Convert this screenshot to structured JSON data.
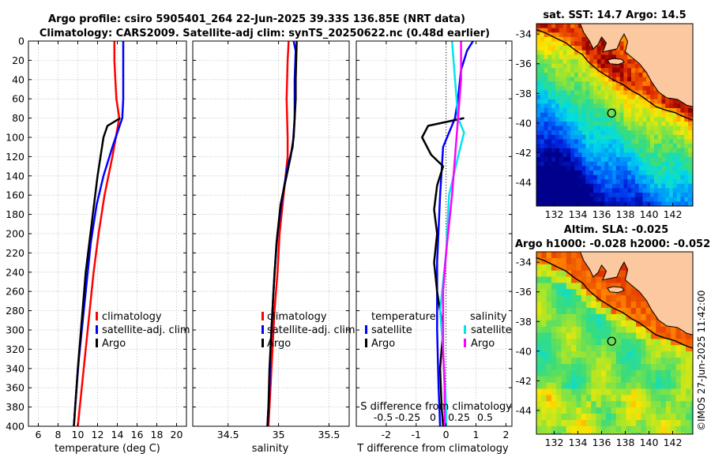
{
  "header": {
    "line1": "Argo profile: csiro 5905401_264 22-Jun-2025 39.33S 136.85E (NRT data)",
    "line2": "Climatology: CARS2009. Satellite-adj clim: synTS_20250622.nc (0.48d earlier)"
  },
  "colors": {
    "climatology": "#ff0000",
    "satellite": "#0000ff",
    "argo": "#000000",
    "sat_salinity": "#00e5ee",
    "argo_salinity": "#ff00ff",
    "land": "#fbc8a0"
  },
  "chart_data": [
    {
      "type": "line",
      "name": "temperature",
      "xlabel": "temperature (deg C)",
      "xlim": [
        5,
        21
      ],
      "ylim": [
        0,
        400
      ],
      "xticks": [
        6,
        8,
        10,
        12,
        14,
        16,
        18,
        20
      ],
      "yticks": [
        0,
        20,
        40,
        60,
        80,
        100,
        120,
        140,
        160,
        180,
        200,
        220,
        240,
        260,
        280,
        300,
        320,
        340,
        360,
        380,
        400
      ],
      "legend": [
        "climatology",
        "satellite-adj. clim",
        "Argo"
      ],
      "series": [
        {
          "name": "climatology",
          "color": "#ff0000",
          "points": [
            [
              13.7,
              0
            ],
            [
              13.7,
              20
            ],
            [
              13.8,
              40
            ],
            [
              13.9,
              60
            ],
            [
              14.2,
              80
            ],
            [
              13.5,
              120
            ],
            [
              12.7,
              160
            ],
            [
              12.1,
              200
            ],
            [
              11.6,
              240
            ],
            [
              11.2,
              280
            ],
            [
              10.8,
              320
            ],
            [
              10.4,
              360
            ],
            [
              10.0,
              400
            ]
          ]
        },
        {
          "name": "satellite-adj. clim",
          "color": "#0000ff",
          "points": [
            [
              14.6,
              0
            ],
            [
              14.6,
              20
            ],
            [
              14.6,
              40
            ],
            [
              14.6,
              60
            ],
            [
              14.5,
              80
            ],
            [
              13.5,
              110
            ],
            [
              12.6,
              140
            ],
            [
              11.9,
              170
            ],
            [
              11.3,
              210
            ],
            [
              10.9,
              250
            ],
            [
              10.5,
              290
            ],
            [
              10.1,
              330
            ],
            [
              9.8,
              370
            ],
            [
              9.6,
              400
            ]
          ]
        },
        {
          "name": "Argo",
          "color": "#000000",
          "points": [
            [
              14.3,
              80
            ],
            [
              13.0,
              88
            ],
            [
              12.6,
              100
            ],
            [
              12.0,
              140
            ],
            [
              11.4,
              190
            ],
            [
              10.8,
              240
            ],
            [
              10.4,
              290
            ],
            [
              10.0,
              340
            ],
            [
              9.8,
              370
            ],
            [
              9.6,
              400
            ]
          ]
        }
      ]
    },
    {
      "type": "line",
      "name": "salinity",
      "xlabel": "salinity",
      "xlim": [
        34.15,
        35.7
      ],
      "ylim": [
        0,
        400
      ],
      "xticks": [
        34.5,
        35,
        35.5
      ],
      "legend": [
        "climatology",
        "satellite-adj. clim",
        "Argo"
      ],
      "series": [
        {
          "name": "climatology",
          "color": "#ff0000",
          "points": [
            [
              35.1,
              0
            ],
            [
              35.09,
              20
            ],
            [
              35.08,
              60
            ],
            [
              35.09,
              100
            ],
            [
              35.09,
              120
            ],
            [
              35.05,
              160
            ],
            [
              35.01,
              200
            ],
            [
              34.99,
              240
            ],
            [
              34.96,
              280
            ],
            [
              34.94,
              320
            ],
            [
              34.92,
              360
            ],
            [
              34.9,
              400
            ]
          ]
        },
        {
          "name": "satellite-adj. clim",
          "color": "#0000ff",
          "points": [
            [
              35.15,
              0
            ],
            [
              35.17,
              10
            ],
            [
              35.16,
              40
            ],
            [
              35.16,
              80
            ],
            [
              35.14,
              110
            ],
            [
              35.09,
              130
            ],
            [
              35.04,
              160
            ],
            [
              34.99,
              200
            ],
            [
              34.96,
              240
            ],
            [
              34.94,
              280
            ],
            [
              34.92,
              320
            ],
            [
              34.91,
              360
            ],
            [
              34.89,
              400
            ]
          ]
        },
        {
          "name": "Argo",
          "color": "#000000",
          "points": [
            [
              35.18,
              0
            ],
            [
              35.17,
              40
            ],
            [
              35.17,
              60
            ],
            [
              35.16,
              80
            ],
            [
              35.15,
              100
            ],
            [
              35.12,
              120
            ],
            [
              35.08,
              140
            ],
            [
              35.02,
              170
            ],
            [
              34.98,
              210
            ],
            [
              34.95,
              260
            ],
            [
              34.93,
              300
            ],
            [
              34.91,
              340
            ],
            [
              34.9,
              380
            ],
            [
              34.89,
              400
            ]
          ]
        }
      ]
    },
    {
      "type": "line",
      "name": "difference",
      "xlabel": "T difference from climatology",
      "xlabel_top": "S difference from climatology",
      "xlim": [
        -3,
        2.2
      ],
      "ylim": [
        0,
        400
      ],
      "xticks": [
        -2,
        -1,
        0,
        1,
        2
      ],
      "xticks_salinity_labels": [
        "-0.5",
        "-0.25",
        "0",
        "0.25",
        "0.5"
      ],
      "legend_temperature_title": "temperature",
      "legend_salinity_title": "salinity",
      "legend": [
        "satellite",
        "Argo",
        "satellite",
        "Argo"
      ],
      "series": [
        {
          "name": "temperature satellite",
          "color": "#0000ff",
          "points": [
            [
              0.9,
              0
            ],
            [
              0.7,
              10
            ],
            [
              0.5,
              30
            ],
            [
              0.4,
              60
            ],
            [
              0.3,
              80
            ],
            [
              -0.1,
              110
            ],
            [
              -0.2,
              160
            ],
            [
              -0.3,
              230
            ],
            [
              -0.3,
              300
            ],
            [
              -0.25,
              360
            ],
            [
              -0.2,
              400
            ]
          ]
        },
        {
          "name": "temperature Argo",
          "color": "#000000",
          "points": [
            [
              0.6,
              80
            ],
            [
              -0.6,
              88
            ],
            [
              -0.8,
              100
            ],
            [
              -0.5,
              118
            ],
            [
              -0.1,
              130
            ],
            [
              -0.3,
              150
            ],
            [
              -0.4,
              175
            ],
            [
              -0.3,
              200
            ],
            [
              -0.4,
              230
            ],
            [
              -0.3,
              260
            ],
            [
              -0.1,
              300
            ],
            [
              -0.2,
              340
            ],
            [
              -0.15,
              380
            ],
            [
              -0.1,
              400
            ]
          ]
        },
        {
          "name": "salinity satellite",
          "color": "#00e5ee",
          "points": [
            [
              0.2,
              0
            ],
            [
              0.3,
              40
            ],
            [
              0.4,
              80
            ],
            [
              0.6,
              95
            ],
            [
              0.4,
              120
            ],
            [
              0.1,
              160
            ],
            [
              0.0,
              220
            ],
            [
              -0.2,
              280
            ],
            [
              -0.1,
              320
            ],
            [
              0.0,
              380
            ],
            [
              0.0,
              400
            ]
          ]
        },
        {
          "name": "salinity Argo",
          "color": "#ff00ff",
          "points": [
            [
              0.5,
              0
            ],
            [
              0.5,
              40
            ],
            [
              0.4,
              80
            ],
            [
              0.3,
              120
            ],
            [
              0.2,
              160
            ],
            [
              0.0,
              220
            ],
            [
              -0.1,
              260
            ],
            [
              -0.1,
              320
            ],
            [
              -0.05,
              360
            ],
            [
              -0.05,
              400
            ]
          ]
        }
      ]
    },
    {
      "type": "heatmap",
      "name": "sat-sst-map",
      "title": "sat. SST: 14.7 Argo: 14.5",
      "xlim": [
        130.5,
        143.7
      ],
      "ylim": [
        -45.6,
        -33.3
      ],
      "xticks": [
        132,
        134,
        136,
        138,
        140,
        142
      ],
      "yticks": [
        -34,
        -36,
        -38,
        -40,
        -42,
        -44
      ],
      "argo_position": [
        136.85,
        -39.33
      ]
    },
    {
      "type": "heatmap",
      "name": "altim-sla-map",
      "title_line1": "Altim. SLA: -0.025",
      "title_line2": "Argo h1000: -0.028 h2000: -0.052",
      "xlim": [
        130.5,
        143.7
      ],
      "ylim": [
        -45.6,
        -33.3
      ],
      "xticks": [
        132,
        134,
        136,
        138,
        140,
        142
      ],
      "yticks": [
        -34,
        -36,
        -38,
        -40,
        -42,
        -44
      ],
      "argo_position": [
        136.85,
        -39.33
      ]
    }
  ],
  "credit": "©IMOS 27-Jun-2025 11:42:00"
}
